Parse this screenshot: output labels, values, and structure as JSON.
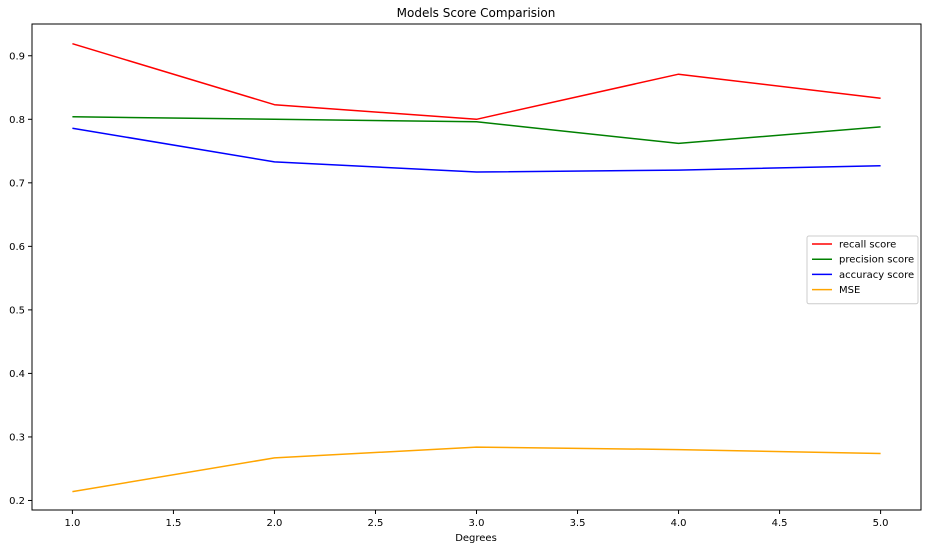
{
  "chart_data": {
    "type": "line",
    "title": "Models Score Comparision",
    "xlabel": "Degrees",
    "ylabel": "",
    "x": [
      1,
      2,
      3,
      4,
      5
    ],
    "xlim": [
      0.8,
      5.2
    ],
    "ylim": [
      0.185,
      0.95
    ],
    "xticks": [
      1.0,
      1.5,
      2.0,
      2.5,
      3.0,
      3.5,
      4.0,
      4.5,
      5.0
    ],
    "xtick_labels": [
      "1.0",
      "1.5",
      "2.0",
      "2.5",
      "3.0",
      "3.5",
      "4.0",
      "4.5",
      "5.0"
    ],
    "yticks": [
      0.2,
      0.3,
      0.4,
      0.5,
      0.6,
      0.7,
      0.8,
      0.9
    ],
    "ytick_labels": [
      "0.2",
      "0.3",
      "0.4",
      "0.5",
      "0.6",
      "0.7",
      "0.8",
      "0.9"
    ],
    "grid": false,
    "legend_position": "center-right",
    "series": [
      {
        "name": "recall score",
        "color": "#ff0000",
        "values": [
          0.919,
          0.823,
          0.8,
          0.871,
          0.833
        ]
      },
      {
        "name": "precision score",
        "color": "#008000",
        "values": [
          0.804,
          0.8,
          0.796,
          0.762,
          0.788
        ]
      },
      {
        "name": "accuracy score",
        "color": "#0000ff",
        "values": [
          0.786,
          0.733,
          0.717,
          0.72,
          0.727
        ]
      },
      {
        "name": "MSE",
        "color": "#ffa500",
        "values": [
          0.214,
          0.267,
          0.284,
          0.28,
          0.274
        ]
      }
    ]
  }
}
